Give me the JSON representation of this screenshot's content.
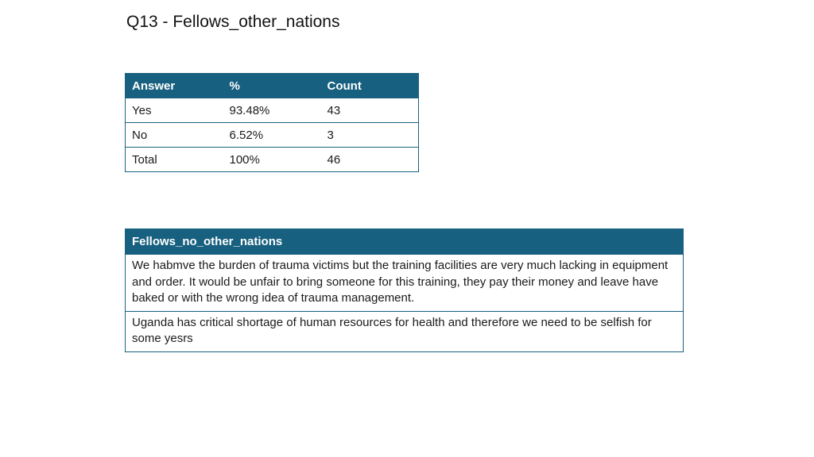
{
  "title": "Q13 - Fellows_other_nations",
  "summary_table": {
    "headers": [
      "Answer",
      "%",
      "Count"
    ],
    "rows": [
      [
        "Yes",
        "93.48%",
        "43"
      ],
      [
        "No",
        "6.52%",
        "3"
      ],
      [
        "Total",
        "100%",
        "46"
      ]
    ]
  },
  "comments_table": {
    "header": "Fellows_no_other_nations",
    "rows": [
      "We habmve the burden of trauma victims but the training facilities are very much lacking in equipment and order. It would be unfair to bring someone for this training, they pay their money and leave have baked or with the wrong idea of trauma management.",
      "Uganda has critical shortage of human resources for health and therefore we need to be selfish for some yesrs"
    ]
  },
  "colors": {
    "header_background": "#17607f",
    "header_text": "#ffffff",
    "border": "#17607f"
  }
}
